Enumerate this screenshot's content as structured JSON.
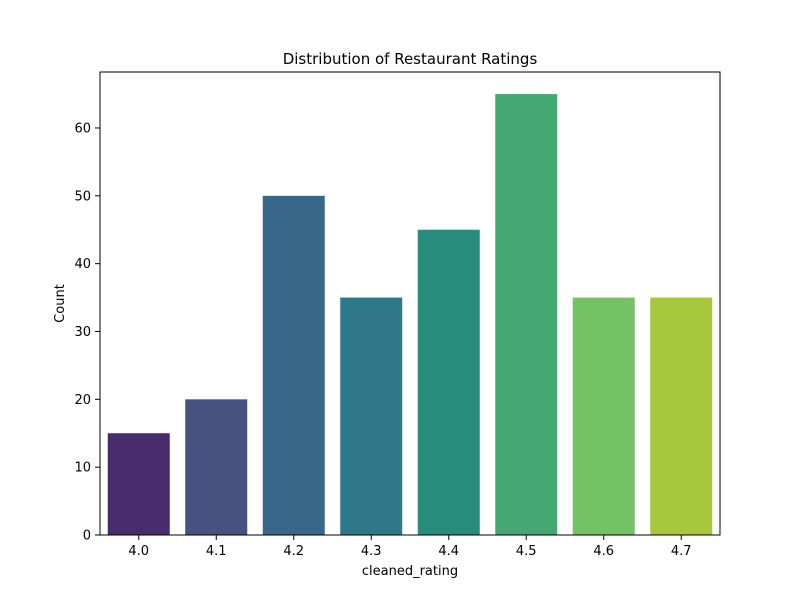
{
  "chart_data": {
    "type": "bar",
    "title": "Distribution of Restaurant Ratings",
    "xlabel": "cleaned_rating",
    "ylabel": "Count",
    "categories": [
      "4.0",
      "4.1",
      "4.2",
      "4.3",
      "4.4",
      "4.5",
      "4.6",
      "4.7"
    ],
    "values": [
      15,
      20,
      50,
      35,
      45,
      65,
      35,
      35
    ],
    "colors": [
      "#482b6d",
      "#465381",
      "#39678a",
      "#2f788a",
      "#278c7b",
      "#45a872",
      "#74c166",
      "#a7c73e"
    ],
    "ylim": [
      0,
      68.25
    ],
    "yticks": [
      0,
      10,
      20,
      30,
      40,
      50,
      60
    ],
    "grid": false,
    "legend": "none"
  }
}
